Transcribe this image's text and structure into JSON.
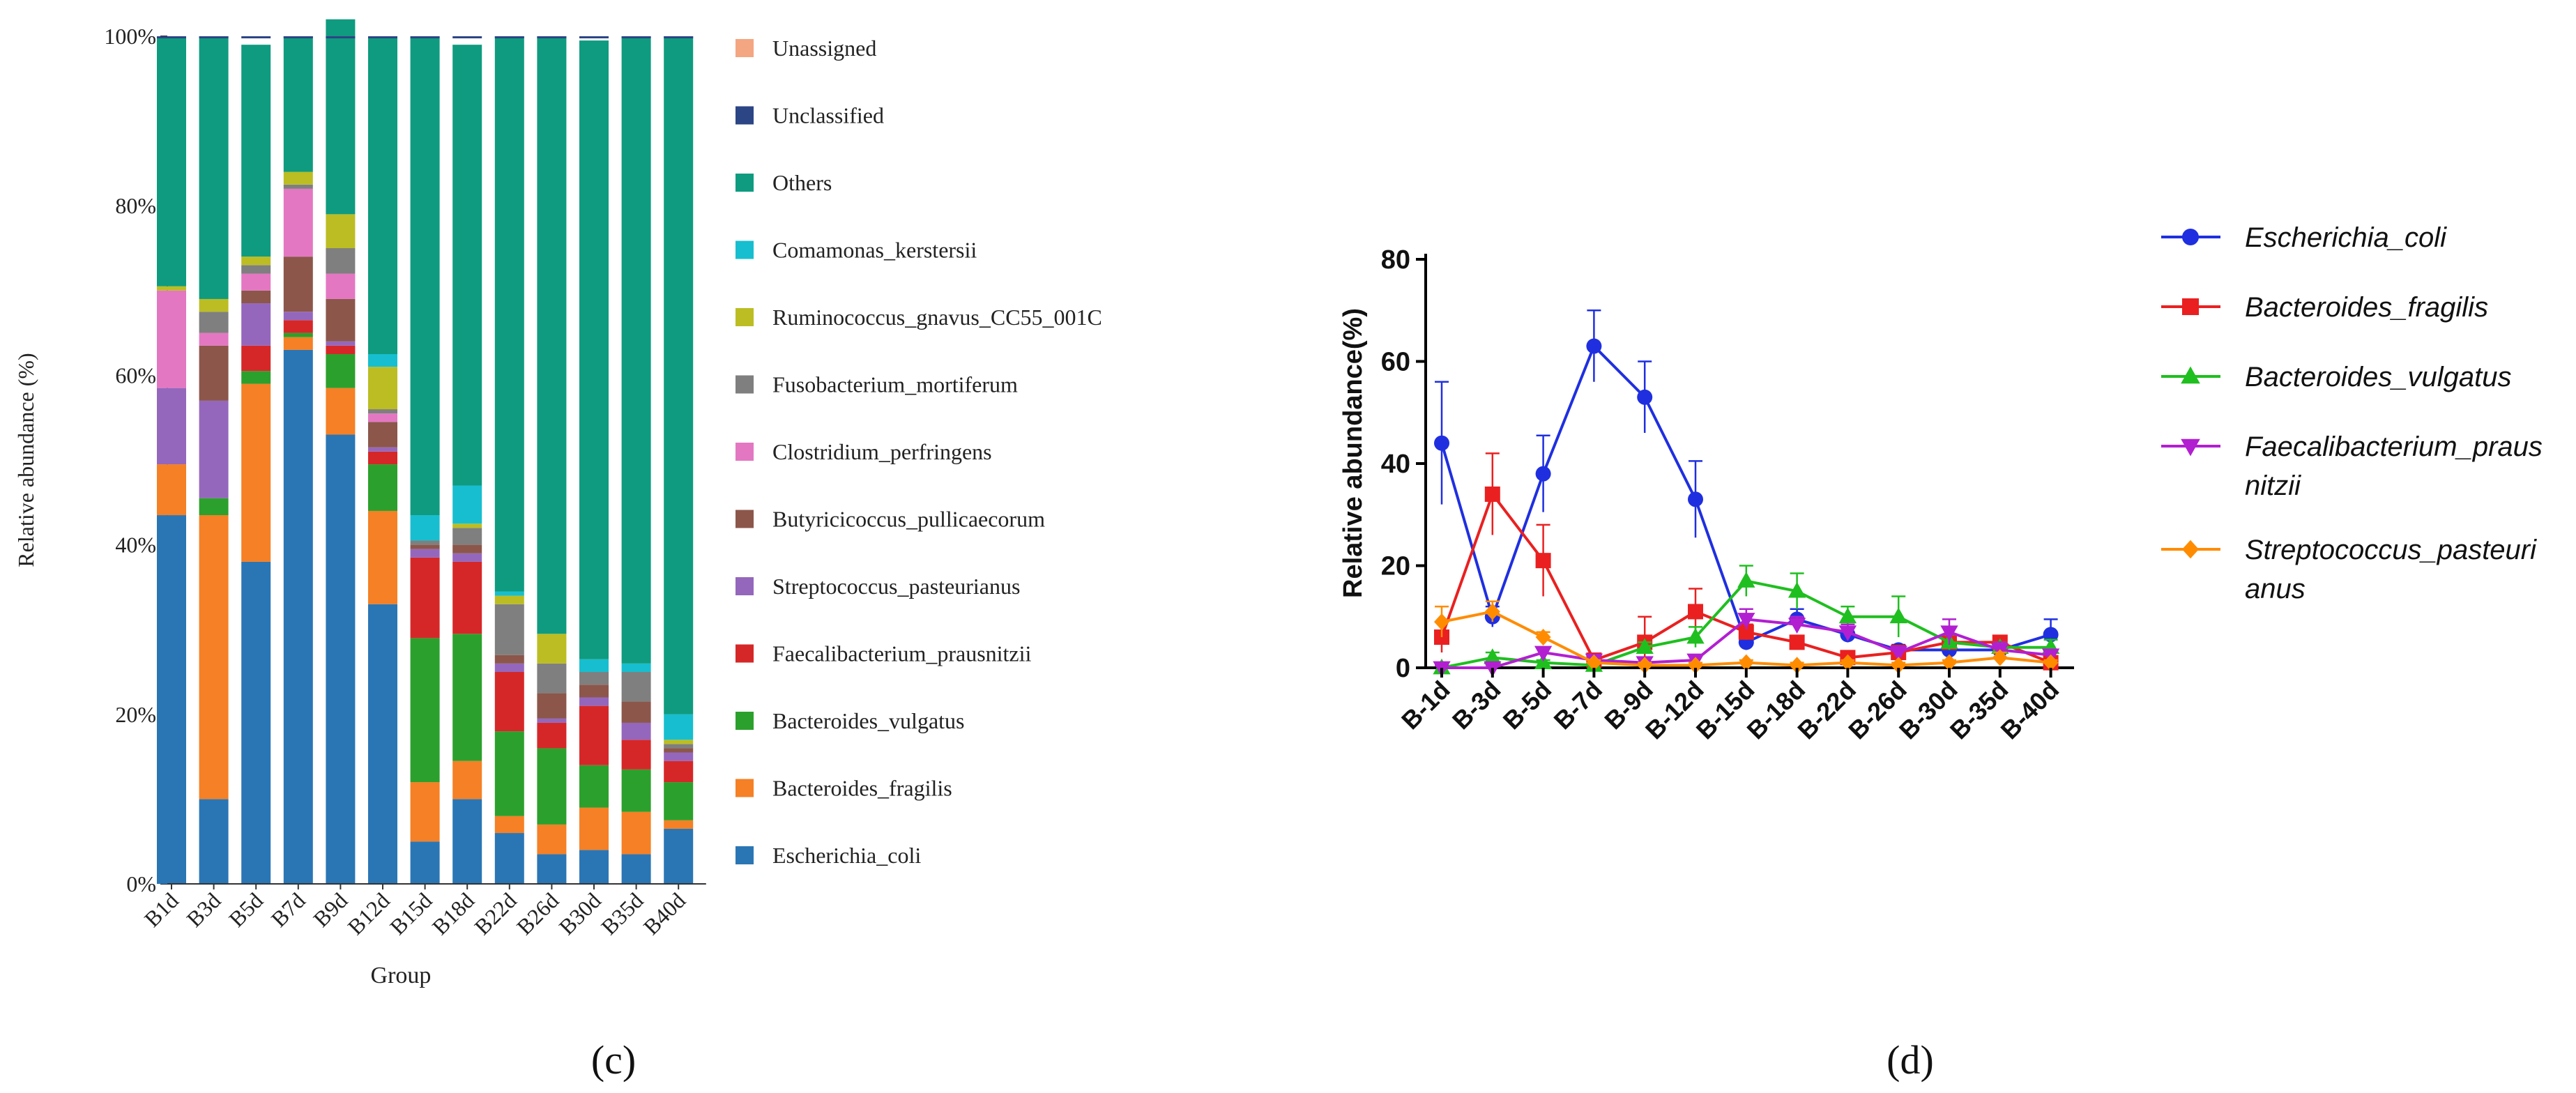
{
  "chart_data": [
    {
      "type": "stacked-bar",
      "panel_label": "(c)",
      "title": "",
      "xlabel": "Group",
      "ylabel": "Relative abundance (%)",
      "ylim": [
        0,
        100
      ],
      "yticks": [
        "0%",
        "20%",
        "40%",
        "60%",
        "80%",
        "100%"
      ],
      "categories": [
        "B1d",
        "B3d",
        "B5d",
        "B7d",
        "B9d",
        "B12d",
        "B15d",
        "B18d",
        "B22d",
        "B26d",
        "B30d",
        "B35d",
        "B40d"
      ],
      "series": [
        {
          "name": "Escherichia_coli",
          "color": "#2a76b5",
          "values": [
            43.5,
            10,
            38,
            63,
            53,
            33,
            5,
            10,
            6,
            3.5,
            4,
            3.5,
            6.5
          ]
        },
        {
          "name": "Bacteroides_fragilis",
          "color": "#f58025",
          "values": [
            6,
            33.5,
            21,
            1.5,
            5.5,
            11,
            7,
            4.5,
            2,
            3.5,
            5,
            5,
            1
          ]
        },
        {
          "name": "Bacteroides_vulgatus",
          "color": "#2ca02c",
          "values": [
            0,
            2,
            1.5,
            0.5,
            4,
            5.5,
            17,
            15,
            10,
            9,
            5,
            5,
            4.5
          ]
        },
        {
          "name": "Faecalibacterium_prausnitzii",
          "color": "#d62728",
          "values": [
            0,
            0,
            3,
            1.5,
            1,
            1.5,
            9.5,
            8.5,
            7,
            3,
            7,
            3.5,
            2.5
          ]
        },
        {
          "name": "Streptococcus_pasteurianus",
          "color": "#9467bd",
          "values": [
            9,
            11.5,
            5,
            1,
            0.5,
            0.5,
            1,
            1,
            1,
            0.5,
            1,
            2,
            1
          ]
        },
        {
          "name": "Butyricicoccus_pullicaecorum",
          "color": "#8c564b",
          "values": [
            0,
            6.5,
            1.5,
            6.5,
            5,
            3,
            0.5,
            1,
            1,
            3,
            1.5,
            2.5,
            0.5
          ]
        },
        {
          "name": "Clostridium_perfringens",
          "color": "#e377c2",
          "values": [
            11.5,
            1.5,
            2,
            8,
            3,
            1,
            0,
            0,
            0,
            0,
            0,
            0,
            0
          ]
        },
        {
          "name": "Fusobacterium_mortiferum",
          "color": "#7f7f7f",
          "values": [
            0,
            2.5,
            1,
            0.5,
            3,
            0.5,
            0.5,
            2,
            6,
            3.5,
            1.5,
            3.5,
            0.5
          ]
        },
        {
          "name": "Ruminococcus_gnavus_CC55_001C",
          "color": "#bcbd22",
          "values": [
            0.5,
            1.5,
            1,
            1.5,
            4,
            5,
            0,
            0.5,
            1,
            3.5,
            0,
            0,
            0.5
          ]
        },
        {
          "name": "Comamonas_kerstersii",
          "color": "#17becf",
          "values": [
            0,
            0,
            0,
            0,
            0,
            1.5,
            3,
            4.5,
            0.5,
            0,
            1.5,
            1,
            3
          ]
        },
        {
          "name": "Others",
          "color": "#0f9b7f",
          "values": [
            29.5,
            31,
            25,
            16,
            23,
            37.5,
            56.5,
            52,
            65.5,
            70.5,
            73,
            74,
            80
          ]
        },
        {
          "name": "Unclassified",
          "color": "#2c4585",
          "values": [
            0,
            0,
            0,
            0,
            0,
            0,
            0,
            0,
            0,
            0,
            0,
            0,
            0
          ]
        },
        {
          "name": "Unassigned",
          "color": "#f4a582",
          "values": [
            0,
            0,
            0,
            0,
            0,
            0,
            0,
            0,
            0,
            0,
            0,
            0,
            0
          ]
        }
      ],
      "legend_order": [
        "Unassigned",
        "Unclassified",
        "Others",
        "Comamonas_kerstersii",
        "Ruminococcus_gnavus_CC55_001C",
        "Fusobacterium_mortiferum",
        "Clostridium_perfringens",
        "Butyricicoccus_pullicaecorum",
        "Streptococcus_pasteurianus",
        "Faecalibacterium_prausnitzii",
        "Bacteroides_vulgatus",
        "Bacteroides_fragilis",
        "Escherichia_coli"
      ],
      "legend_labels": [
        "Unassigned",
        "Unclassified",
        "Others",
        "Comamonas_kerstersii",
        "Ruminococcus_gnavus_CC55_001C",
        "Fusobacterium_mortiferum",
        "Clostridium_perfringens",
        "Butyricicoccus_pullicaecorum",
        "Streptococcus_pasteurianus",
        "Faecalibacterium_prausnitzii",
        "Bacteroides_vulgatus",
        "Bacteroides_fragilis",
        "Escherichia_coli"
      ],
      "legend_position": "right"
    },
    {
      "type": "line",
      "panel_label": "(d)",
      "title": "",
      "xlabel": "",
      "ylabel": "Relative abundance(%)",
      "ylim": [
        0,
        80
      ],
      "yticks": [
        0,
        20,
        40,
        60,
        80
      ],
      "categories": [
        "B-1d",
        "B-3d",
        "B-5d",
        "B-7d",
        "B-9d",
        "B-12d",
        "B-15d",
        "B-18d",
        "B-22d",
        "B-26d",
        "B-30d",
        "B-35d",
        "B-40d"
      ],
      "series": [
        {
          "name": "Escherichia_coli",
          "legend": [
            "Escherichia_coli"
          ],
          "color": "#1f2fe0",
          "marker": "circle",
          "values": [
            44,
            10,
            38,
            63,
            53,
            33,
            5,
            9.5,
            6.5,
            3.5,
            3.5,
            3.5,
            6.5
          ],
          "errors": [
            12,
            2,
            7.5,
            7,
            7,
            7.5,
            1.5,
            2,
            1.5,
            1,
            1,
            1,
            3
          ]
        },
        {
          "name": "Bacteroides_fragilis",
          "legend": [
            "Bacteroides_fragilis"
          ],
          "color": "#ea2020",
          "marker": "square",
          "values": [
            6,
            34,
            21,
            1.5,
            5,
            11,
            7,
            5,
            2,
            3,
            5,
            5,
            1
          ],
          "errors": [
            3,
            8,
            7,
            1,
            5,
            4.5,
            1.5,
            1,
            1,
            1,
            1.5,
            1,
            1
          ]
        },
        {
          "name": "Bacteroides_vulgatus",
          "legend": [
            "Bacteroides_vulgatus"
          ],
          "color": "#1fbf1f",
          "marker": "triangle-up",
          "values": [
            0,
            2,
            1,
            0.5,
            4,
            6,
            17,
            15,
            10,
            10,
            5,
            4,
            4
          ],
          "errors": [
            0.5,
            1,
            0.5,
            0.5,
            1,
            2,
            3,
            3.5,
            2,
            4,
            1.5,
            1,
            1.5
          ]
        },
        {
          "name": "Faecalibacterium_prausnitzii",
          "legend": [
            "Faecalibacterium_praus",
            "nitzii"
          ],
          "color": "#b21fd1",
          "marker": "triangle-down",
          "values": [
            0,
            0,
            3,
            1.5,
            1,
            1.5,
            9.5,
            8.5,
            7,
            3,
            7,
            3.5,
            2.5
          ],
          "errors": [
            0.5,
            0.5,
            1,
            1,
            1,
            1,
            2,
            1.5,
            1.5,
            1,
            2.5,
            1.5,
            1
          ]
        },
        {
          "name": "Streptococcus_pasteurianus",
          "legend": [
            "Streptococcus_pasteuri",
            "anus"
          ],
          "color": "#ff8c00",
          "marker": "diamond",
          "values": [
            9,
            11,
            6,
            1,
            0.5,
            0.5,
            1,
            0.5,
            1,
            0.5,
            1,
            2,
            1
          ],
          "errors": [
            3,
            2,
            1,
            0.5,
            0.5,
            0.5,
            0.5,
            0.5,
            0.5,
            0.5,
            0.5,
            1,
            0.5
          ]
        }
      ],
      "legend_position": "right"
    }
  ]
}
